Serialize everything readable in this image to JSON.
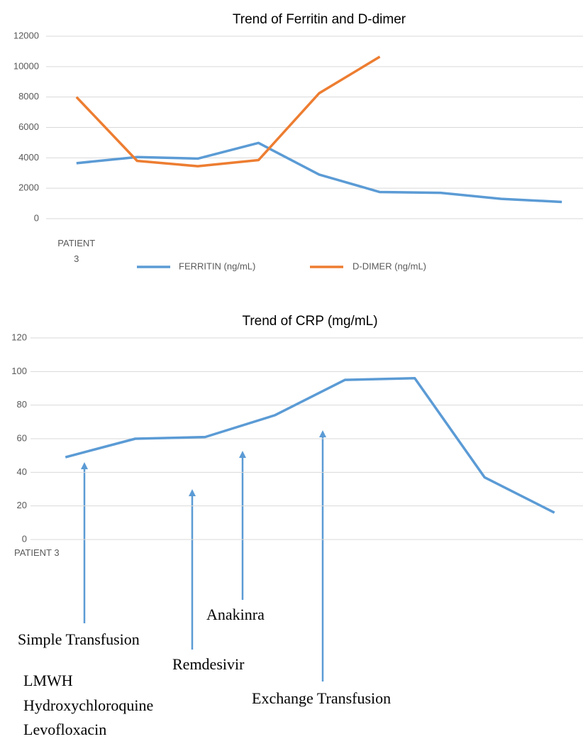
{
  "chart_data": [
    {
      "type": "line",
      "title": "Trend of Ferritin and D-dimer",
      "categories": [
        "PATIENT 3",
        null,
        null,
        null,
        null,
        null,
        null,
        null,
        null
      ],
      "series": [
        {
          "name": "FERRITIN (ng/mL)",
          "color": "#5b9bd5",
          "values": [
            3650,
            4050,
            3950,
            4980,
            2900,
            1750,
            1700,
            1300,
            1100
          ]
        },
        {
          "name": "D-DIMER (ng/mL)",
          "color": "#ed7d31",
          "values": [
            8000,
            3800,
            3450,
            3850,
            8250,
            10650,
            null,
            null,
            null
          ]
        }
      ],
      "ylim": [
        0,
        12000
      ],
      "yticks": [
        0,
        2000,
        4000,
        6000,
        8000,
        10000,
        12000
      ],
      "grid": true,
      "legend": "bottom"
    },
    {
      "type": "line",
      "title": "Trend of CRP (mg/mL)",
      "categories": [
        "PATIENT 3",
        null,
        null,
        null,
        null,
        null,
        null,
        null
      ],
      "series": [
        {
          "name": "CRP",
          "color": "#5b9bd5",
          "values": [
            49,
            60,
            61,
            74,
            95,
            96,
            37,
            16
          ]
        }
      ],
      "ylim": [
        0,
        120
      ],
      "yticks": [
        0,
        20,
        40,
        60,
        80,
        100,
        120
      ],
      "grid": true,
      "annotations": [
        "Simple Transfusion",
        "LMWH",
        "Hydroxychloroquine",
        "Levofloxacin",
        "Remdesivir",
        "Anakinra",
        "Exchange Transfusion"
      ]
    }
  ]
}
